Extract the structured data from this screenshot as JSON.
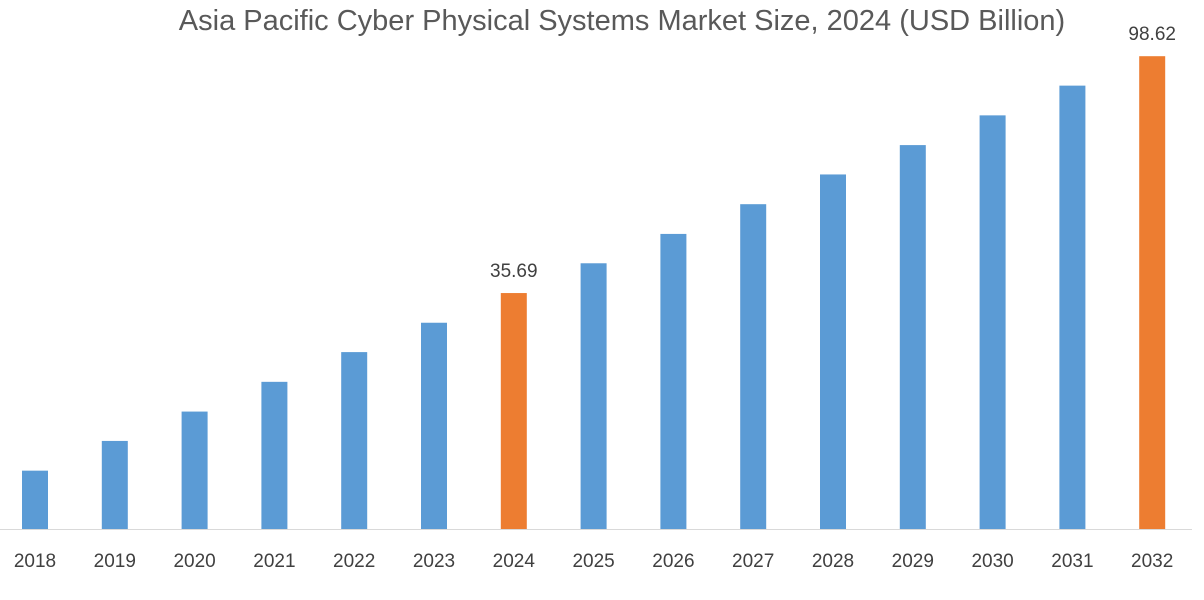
{
  "chart_data": {
    "type": "bar",
    "title": "Asia Pacific Cyber Physical Systems Market Size, 2024 (USD Billion)",
    "xlabel": "",
    "ylabel": "",
    "categories": [
      "2018",
      "2019",
      "2020",
      "2021",
      "2022",
      "2023",
      "2024",
      "2025",
      "2026",
      "2027",
      "2028",
      "2029",
      "2030",
      "2031",
      "2032"
    ],
    "values": [
      -11.5,
      -3.6,
      4.2,
      12.1,
      20.0,
      27.8,
      35.69,
      43.6,
      51.4,
      59.3,
      67.2,
      75.0,
      82.9,
      90.8,
      98.62
    ],
    "data_labels": {
      "2024": "35.69",
      "2032": "98.62"
    },
    "highlight": [
      "2024",
      "2032"
    ],
    "ylim": [
      -27,
      100
    ],
    "y_axis_visible": false,
    "grid": false,
    "legend": "none",
    "colors": {
      "bar": "#5b9bd5",
      "highlight": "#ed7d31",
      "axis": "#d9d9d9"
    }
  }
}
